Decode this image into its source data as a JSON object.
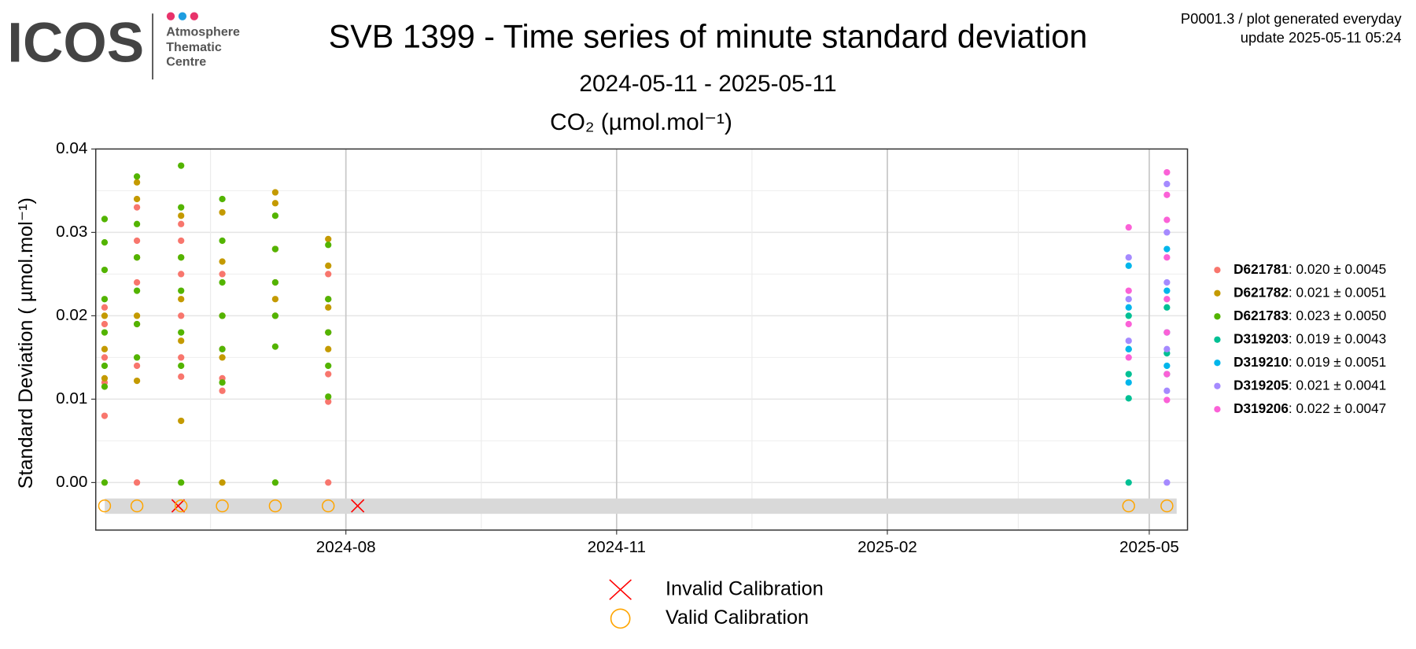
{
  "header": {
    "logo": "ICOS",
    "logo_lines": [
      "Atmosphere",
      "Thematic",
      "Centre"
    ],
    "info": [
      "P0001.3 / plot generated everyday",
      "update  2025-05-11 05:24"
    ]
  },
  "chart_data": {
    "type": "scatter",
    "title": "SVB 1399 - Time series of minute standard deviation",
    "subtitle": "2024-05-11 - 2025-05-11",
    "panel_title": "CO₂ (µmol.mol⁻¹)",
    "y_label": "Standard Deviation ( µmol.mol⁻¹)",
    "grid": true,
    "legend": "right",
    "xlim": [
      "2024-05-08",
      "2025-05-14"
    ],
    "xticks": [
      {
        "value": "2024-08-01",
        "label": "2024-08"
      },
      {
        "value": "2024-11-01",
        "label": "2024-11"
      },
      {
        "value": "2025-02-01",
        "label": "2025-02"
      },
      {
        "value": "2025-05-01",
        "label": "2025-05"
      }
    ],
    "ylim": [
      -0.0057,
      0.04
    ],
    "yticks": [
      {
        "value": 0,
        "label": "0.00"
      },
      {
        "value": 0.01,
        "label": "0.01"
      },
      {
        "value": 0.02,
        "label": "0.02"
      },
      {
        "value": 0.03,
        "label": "0.03"
      },
      {
        "value": 0.04,
        "label": "0.04"
      }
    ],
    "series": [
      {
        "name": "D621781",
        "summary": "0.020 ± 0.0045",
        "color": "#F8766D",
        "x": [
          "2024-05-11",
          "2024-05-11",
          "2024-05-11",
          "2024-05-11",
          "2024-05-11",
          "2024-05-22",
          "2024-05-22",
          "2024-05-22",
          "2024-05-22",
          "2024-05-22",
          "2024-05-22",
          "2024-06-06",
          "2024-06-06",
          "2024-06-06",
          "2024-06-06",
          "2024-06-06",
          "2024-06-06",
          "2024-06-20",
          "2024-06-20",
          "2024-06-20",
          "2024-06-20",
          "2024-06-20",
          "2024-07-08",
          "2024-07-08",
          "2024-07-08",
          "2024-07-26",
          "2024-07-26",
          "2024-07-26",
          "2024-07-26",
          "2024-07-26",
          "2024-07-26"
        ],
        "values": [
          0.008,
          0.012,
          0.015,
          0.019,
          0.021,
          0,
          0.014,
          0.019,
          0.024,
          0.029,
          0.033,
          0.0127,
          0.015,
          0.02,
          0.025,
          0.029,
          0.031,
          0.011,
          0.0125,
          0.016,
          0.02,
          0.025,
          0.02,
          0.024,
          0.028,
          0,
          0.0097,
          0.013,
          0.018,
          0.022,
          0.025
        ]
      },
      {
        "name": "D621782",
        "summary": "0.021 ± 0.0051",
        "color": "#C49A00",
        "x": [
          "2024-05-11",
          "2024-05-11",
          "2024-05-11",
          "2024-05-22",
          "2024-05-22",
          "2024-05-22",
          "2024-05-22",
          "2024-05-22",
          "2024-06-06",
          "2024-06-06",
          "2024-06-06",
          "2024-06-06",
          "2024-06-06",
          "2024-06-20",
          "2024-06-20",
          "2024-06-20",
          "2024-06-20",
          "2024-06-20",
          "2024-07-08",
          "2024-07-08",
          "2024-07-08",
          "2024-07-08",
          "2024-07-26",
          "2024-07-26",
          "2024-07-26",
          "2024-07-26"
        ],
        "values": [
          0.0125,
          0.016,
          0.02,
          0.0122,
          0.02,
          0.027,
          0.034,
          0.036,
          0.0074,
          0.017,
          0.022,
          0.027,
          0.032,
          0,
          0.015,
          0.02,
          0.0265,
          0.0324,
          0.022,
          0.028,
          0.0335,
          0.0348,
          0.016,
          0.021,
          0.026,
          0.0292
        ]
      },
      {
        "name": "D621783",
        "summary": "0.023 ± 0.0050",
        "color": "#53B400",
        "x": [
          "2024-05-11",
          "2024-05-11",
          "2024-05-11",
          "2024-05-11",
          "2024-05-11",
          "2024-05-11",
          "2024-05-11",
          "2024-05-11",
          "2024-05-22",
          "2024-05-22",
          "2024-05-22",
          "2024-05-22",
          "2024-05-22",
          "2024-05-22",
          "2024-06-06",
          "2024-06-06",
          "2024-06-06",
          "2024-06-06",
          "2024-06-06",
          "2024-06-06",
          "2024-06-06",
          "2024-06-20",
          "2024-06-20",
          "2024-06-20",
          "2024-06-20",
          "2024-06-20",
          "2024-06-20",
          "2024-07-08",
          "2024-07-08",
          "2024-07-08",
          "2024-07-08",
          "2024-07-08",
          "2024-07-08",
          "2024-07-26",
          "2024-07-26",
          "2024-07-26",
          "2024-07-26",
          "2024-07-26"
        ],
        "values": [
          0,
          0.0115,
          0.014,
          0.018,
          0.022,
          0.0255,
          0.0288,
          0.0316,
          0.015,
          0.019,
          0.023,
          0.027,
          0.031,
          0.0367,
          0,
          0.014,
          0.018,
          0.023,
          0.027,
          0.033,
          0.038,
          0.012,
          0.016,
          0.02,
          0.024,
          0.029,
          0.034,
          0,
          0.0163,
          0.02,
          0.024,
          0.028,
          0.032,
          0.0103,
          0.014,
          0.018,
          0.022,
          0.0285
        ]
      },
      {
        "name": "D319203",
        "summary": "0.019 ± 0.0043",
        "color": "#00C094",
        "x": [
          "2025-04-24",
          "2025-04-24",
          "2025-04-24",
          "2025-04-24",
          "2025-04-24",
          "2025-05-07",
          "2025-05-07",
          "2025-05-07"
        ],
        "values": [
          0,
          0.0101,
          0.013,
          0.016,
          0.02,
          0.013,
          0.0155,
          0.021
        ]
      },
      {
        "name": "D319210",
        "summary": "0.019 ± 0.0051",
        "color": "#00B6EB",
        "x": [
          "2025-04-24",
          "2025-04-24",
          "2025-04-24",
          "2025-04-24",
          "2025-05-07",
          "2025-05-07",
          "2025-05-07",
          "2025-05-07"
        ],
        "values": [
          0.012,
          0.016,
          0.021,
          0.026,
          0.014,
          0.018,
          0.023,
          0.028
        ]
      },
      {
        "name": "D319205",
        "summary": "0.021 ± 0.0041",
        "color": "#A58AFF",
        "x": [
          "2025-04-24",
          "2025-04-24",
          "2025-04-24",
          "2025-05-07",
          "2025-05-07",
          "2025-05-07",
          "2025-05-07",
          "2025-05-07",
          "2025-05-07"
        ],
        "values": [
          0.017,
          0.022,
          0.027,
          0,
          0.011,
          0.016,
          0.024,
          0.03,
          0.0358
        ]
      },
      {
        "name": "D319206",
        "summary": "0.022 ± 0.0047",
        "color": "#FB61D7",
        "x": [
          "2025-04-24",
          "2025-04-24",
          "2025-04-24",
          "2025-04-24",
          "2025-05-07",
          "2025-05-07",
          "2025-05-07",
          "2025-05-07",
          "2025-05-07",
          "2025-05-07",
          "2025-05-07",
          "2025-05-07"
        ],
        "values": [
          0.015,
          0.019,
          0.023,
          0.0306,
          0.0099,
          0.013,
          0.018,
          0.022,
          0.027,
          0.0315,
          0.0345,
          0.0372
        ]
      }
    ],
    "calibrations": [
      {
        "name": "Invalid Calibration",
        "marker": "x",
        "color": "#FF0000",
        "x": [
          "2024-06-05",
          "2024-08-05"
        ],
        "values": [
          -0.0028,
          -0.0028
        ]
      },
      {
        "name": "Valid Calibration",
        "marker": "circle",
        "color": "#FFA500",
        "x": [
          "2024-05-11",
          "2024-05-22",
          "2024-06-06",
          "2024-06-20",
          "2024-07-08",
          "2024-07-26",
          "2025-04-24",
          "2025-05-07"
        ],
        "values": [
          -0.0028,
          -0.0028,
          -0.0028,
          -0.0028,
          -0.0028,
          -0.0028,
          -0.0028,
          -0.0028
        ]
      }
    ]
  }
}
